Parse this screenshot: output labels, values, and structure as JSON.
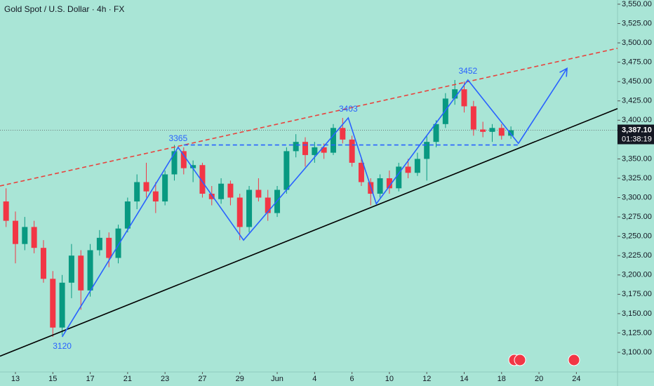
{
  "chart_data": {
    "type": "candlestick",
    "title": "Gold Spot / U.S. Dollar · 4h · FX",
    "up_color": "#089981",
    "down_color": "#f23645",
    "background": "#a9e5d6",
    "xlim": [
      -0.825,
      32.2
    ],
    "ylim": [
      3074.6,
      3555.4
    ],
    "xticks": [
      {
        "value": 0,
        "label": "13"
      },
      {
        "value": 2,
        "label": "15"
      },
      {
        "value": 4,
        "label": "17"
      },
      {
        "value": 6,
        "label": "21"
      },
      {
        "value": 8,
        "label": "23"
      },
      {
        "value": 10,
        "label": "27"
      },
      {
        "value": 12,
        "label": "29"
      },
      {
        "value": 14,
        "label": "Jun"
      },
      {
        "value": 16,
        "label": "4"
      },
      {
        "value": 18,
        "label": "6"
      },
      {
        "value": 20,
        "label": "10"
      },
      {
        "value": 22,
        "label": "12"
      },
      {
        "value": 24,
        "label": "14"
      },
      {
        "value": 26,
        "label": "18"
      },
      {
        "value": 28,
        "label": "20"
      },
      {
        "value": 30,
        "label": "24"
      }
    ],
    "yticks": [
      {
        "value": 3100,
        "label": "3,100.00"
      },
      {
        "value": 3125,
        "label": "3,125.00"
      },
      {
        "value": 3150,
        "label": "3,150.00"
      },
      {
        "value": 3175,
        "label": "3,175.00"
      },
      {
        "value": 3200,
        "label": "3,200.00"
      },
      {
        "value": 3225,
        "label": "3,225.00"
      },
      {
        "value": 3250,
        "label": "3,250.00"
      },
      {
        "value": 3275,
        "label": "3,275.00"
      },
      {
        "value": 3300,
        "label": "3,300.00"
      },
      {
        "value": 3325,
        "label": "3,325.00"
      },
      {
        "value": 3350,
        "label": "3,350.00"
      },
      {
        "value": 3375,
        "label": "3,375.00"
      },
      {
        "value": 3400,
        "label": "3,400.00"
      },
      {
        "value": 3425,
        "label": "3,425.00"
      },
      {
        "value": 3450,
        "label": "3,450.00"
      },
      {
        "value": 3475,
        "label": "3,475.00"
      },
      {
        "value": 3500,
        "label": "3,500.00"
      },
      {
        "value": 3525,
        "label": "3,525.00"
      },
      {
        "value": 3550,
        "label": "3,550.00"
      }
    ],
    "x": [
      -0.5,
      0,
      0.5,
      1,
      1.5,
      2,
      2.5,
      3,
      3.5,
      4,
      4.5,
      5,
      5.5,
      6,
      6.5,
      7,
      7.5,
      8,
      8.5,
      9,
      9.5,
      10,
      10.5,
      11,
      11.5,
      12,
      12.5,
      13,
      13.5,
      14,
      14.5,
      15,
      15.5,
      16,
      16.5,
      17,
      17.5,
      18,
      18.5,
      19,
      19.5,
      20,
      20.5,
      21,
      21.5,
      22,
      22.5,
      23,
      23.5,
      24,
      24.5,
      25,
      25.5,
      26,
      26.5
    ],
    "open": [
      3295,
      3270,
      3240,
      3262,
      3235,
      3195,
      3132,
      3190,
      3225,
      3180,
      3232,
      3248,
      3222,
      3260,
      3295,
      3320,
      3308,
      3295,
      3330,
      3360,
      3338,
      3342,
      3305,
      3298,
      3318,
      3300,
      3262,
      3310,
      3300,
      3280,
      3310,
      3360,
      3372,
      3355,
      3365,
      3358,
      3390,
      3375,
      3345,
      3320,
      3305,
      3325,
      3312,
      3340,
      3332,
      3350,
      3372,
      3395,
      3428,
      3440,
      3418,
      3388,
      3385,
      3390,
      3380
    ],
    "high": [
      3312,
      3282,
      3275,
      3270,
      3245,
      3205,
      3200,
      3240,
      3232,
      3240,
      3258,
      3255,
      3265,
      3300,
      3330,
      3345,
      3320,
      3335,
      3368,
      3365,
      3348,
      3345,
      3315,
      3325,
      3322,
      3305,
      3315,
      3325,
      3310,
      3315,
      3365,
      3382,
      3378,
      3372,
      3370,
      3395,
      3403,
      3380,
      3352,
      3325,
      3330,
      3335,
      3345,
      3350,
      3358,
      3380,
      3400,
      3435,
      3452,
      3450,
      3425,
      3398,
      3395,
      3395,
      3392
    ],
    "low": [
      3262,
      3215,
      3232,
      3228,
      3190,
      3120,
      3122,
      3170,
      3155,
      3172,
      3225,
      3210,
      3215,
      3255,
      3285,
      3300,
      3280,
      3290,
      3322,
      3330,
      3320,
      3300,
      3290,
      3292,
      3290,
      3245,
      3255,
      3295,
      3270,
      3275,
      3305,
      3352,
      3340,
      3345,
      3350,
      3355,
      3370,
      3340,
      3315,
      3290,
      3300,
      3305,
      3308,
      3325,
      3328,
      3322,
      3365,
      3390,
      3420,
      3410,
      3380,
      3378,
      3372,
      3375,
      3376
    ],
    "close": [
      3270,
      3240,
      3262,
      3235,
      3195,
      3132,
      3190,
      3225,
      3180,
      3232,
      3248,
      3222,
      3260,
      3295,
      3320,
      3308,
      3295,
      3330,
      3360,
      3338,
      3342,
      3305,
      3298,
      3318,
      3300,
      3262,
      3310,
      3300,
      3280,
      3310,
      3360,
      3372,
      3355,
      3365,
      3358,
      3390,
      3375,
      3345,
      3320,
      3305,
      3325,
      3312,
      3340,
      3332,
      3350,
      3372,
      3395,
      3428,
      3440,
      3418,
      3388,
      3385,
      3390,
      3380,
      3387
    ],
    "drawings": [
      {
        "color": "#e8433d",
        "dash": true,
        "x": [
          -0.825,
          32.2
        ],
        "y": [
          3315,
          3493
        ]
      },
      {
        "color": "#000000",
        "dash": false,
        "x": [
          -0.825,
          32.2
        ],
        "y": [
          3095,
          3415
        ]
      },
      {
        "color": "#2962ff",
        "dash": true,
        "x": [
          9,
          27
        ],
        "y": [
          3368,
          3368
        ]
      },
      {
        "color": "#2962ff",
        "dash": false,
        "arrow": true,
        "x": [
          2.5,
          8.7,
          12.2,
          17.8,
          19.3,
          24.2,
          26.9,
          29.5
        ],
        "y": [
          3120,
          3365,
          3245,
          3403,
          3292,
          3452,
          3370,
          3467
        ]
      }
    ],
    "annotations": [
      {
        "label": "3120",
        "x": 2.5,
        "y": 3120,
        "position": "below"
      },
      {
        "label": "3365",
        "x": 8.7,
        "y": 3365,
        "position": "above"
      },
      {
        "label": "3403",
        "x": 17.8,
        "y": 3403,
        "position": "above"
      },
      {
        "label": "3452",
        "x": 24.2,
        "y": 3452,
        "position": "above"
      }
    ],
    "last_price": {
      "value": 3387.1,
      "label": "3,387.10"
    },
    "countdown": "01:38:19"
  }
}
